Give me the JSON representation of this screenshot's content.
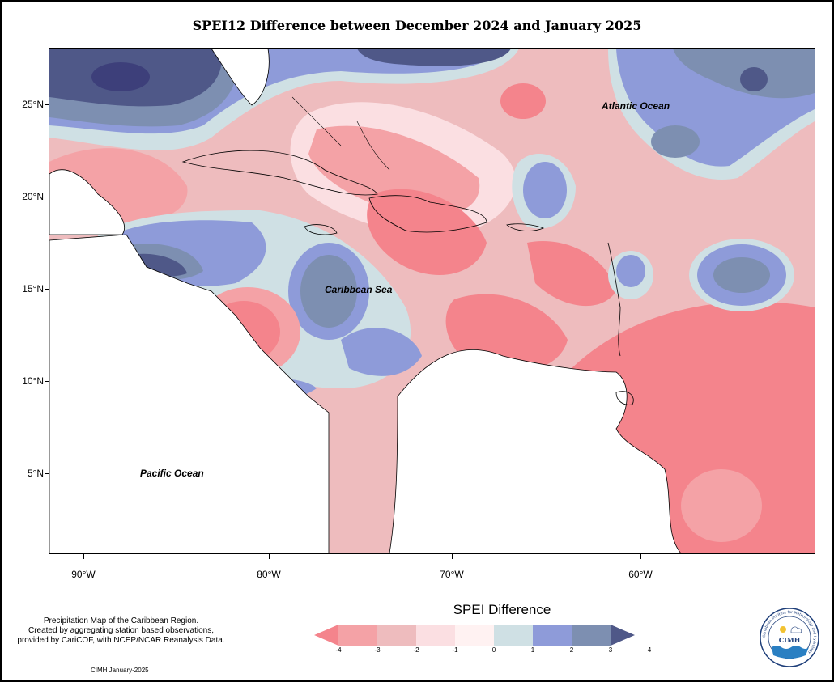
{
  "title": "SPEI12 Difference between December 2024 and January 2025",
  "ocean_labels": {
    "atlantic": "Atlantic Ocean",
    "caribbean": "Caribbean Sea",
    "pacific": "Pacific Ocean"
  },
  "lat_ticks": [
    "25°N",
    "20°N",
    "15°N",
    "10°N",
    "5°N"
  ],
  "lon_ticks": [
    "90°W",
    "80°W",
    "70°W",
    "60°W"
  ],
  "note_lines": [
    "Precipitation Map of the Caribbean Region.",
    "Created by aggregating station based observations,",
    "provided by CariCOF, with NCEP/NCAR Reanalysis Data."
  ],
  "credit": "CIMH January-2025",
  "legend": {
    "title": "SPEI Difference",
    "labels": [
      "-4",
      "-3",
      "-2",
      "-1",
      "0",
      "1",
      "2",
      "3",
      "4"
    ],
    "colors": [
      "#f4848c",
      "#f4a2a6",
      "#eebcbe",
      "#fbdfe2",
      "#fff2f2",
      "#cfe0e4",
      "#8e9bd9",
      "#7d8fb1",
      "#4f5888"
    ]
  },
  "logo": {
    "text": "CIMH",
    "ring_text": "Caribbean Institute for Meteorology and Hydrology"
  },
  "map_colors": {
    "strong_negative": "#f4848c",
    "moderate_negative": "#f4a2a6",
    "slight_negative": "#eebcbe",
    "weak_negative": "#fbdfe2",
    "neutral": "#fff2f2",
    "weak_positive": "#cfe0e4",
    "moderate_positive": "#8e9bd9",
    "strong_positive": "#7d8fb1",
    "extreme_positive": "#4f5888",
    "land": "#ffffff"
  }
}
